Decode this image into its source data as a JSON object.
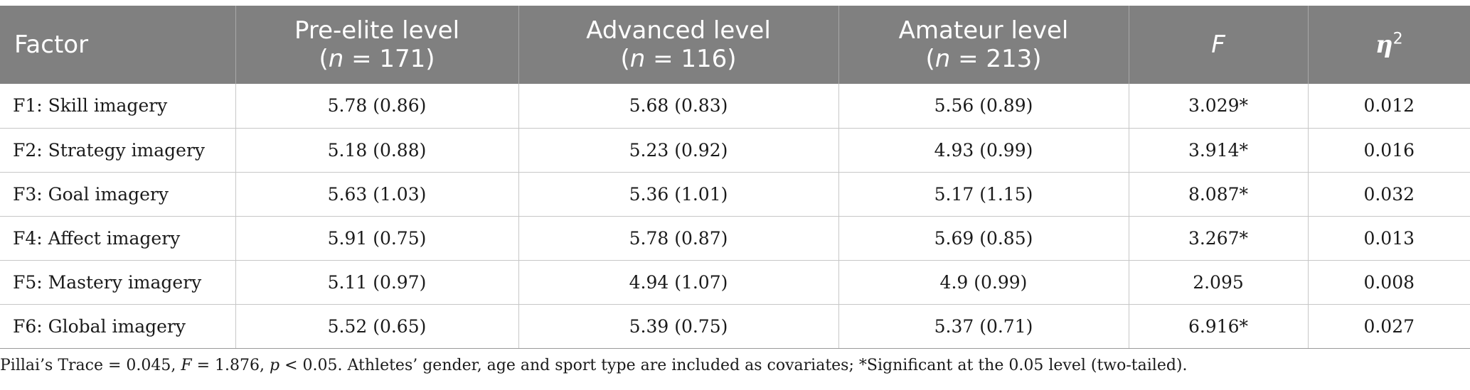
{
  "table": {
    "headers": {
      "factor": "Factor",
      "pre_elite": {
        "label": "Pre-elite level",
        "n_var": "n",
        "n_text": " = 171"
      },
      "advanced": {
        "label": "Advanced level",
        "n_var": "n",
        "n_text": " = 116"
      },
      "amateur": {
        "label": "Amateur level",
        "n_var": "n",
        "n_text": " = 213"
      },
      "f": "F",
      "eta": {
        "symbol": "η",
        "sup": "2"
      }
    },
    "rows": [
      {
        "factor": "F1: Skill imagery",
        "pre_elite": "5.78 (0.86)",
        "advanced": "5.68 (0.83)",
        "amateur": "5.56 (0.89)",
        "f": "3.029*",
        "eta": "0.012"
      },
      {
        "factor": "F2: Strategy imagery",
        "pre_elite": "5.18 (0.88)",
        "advanced": "5.23 (0.92)",
        "amateur": "4.93 (0.99)",
        "f": "3.914*",
        "eta": "0.016"
      },
      {
        "factor": "F3: Goal imagery",
        "pre_elite": "5.63 (1.03)",
        "advanced": "5.36 (1.01)",
        "amateur": "5.17 (1.15)",
        "f": "8.087*",
        "eta": "0.032"
      },
      {
        "factor": "F4: Affect imagery",
        "pre_elite": "5.91 (0.75)",
        "advanced": "5.78 (0.87)",
        "amateur": "5.69 (0.85)",
        "f": "3.267*",
        "eta": "0.013"
      },
      {
        "factor": "F5: Mastery imagery",
        "pre_elite": "5.11 (0.97)",
        "advanced": "4.94 (1.07)",
        "amateur": "4.9 (0.99)",
        "f": "2.095",
        "eta": "0.008"
      },
      {
        "factor": "F6: Global imagery",
        "pre_elite": "5.52 (0.65)",
        "advanced": "5.39 (0.75)",
        "amateur": "5.37 (0.71)",
        "f": "6.916*",
        "eta": "0.027"
      }
    ]
  },
  "footnote": {
    "part1": "Pillai’s Trace = 0.045, ",
    "f_var": "F",
    "part2": " = 1.876, ",
    "p_var": "p",
    "part3": " < 0.05. Athletes’ gender, age and sport type are included as covariates; *Significant at the 0.05 level (two-tailed)."
  }
}
